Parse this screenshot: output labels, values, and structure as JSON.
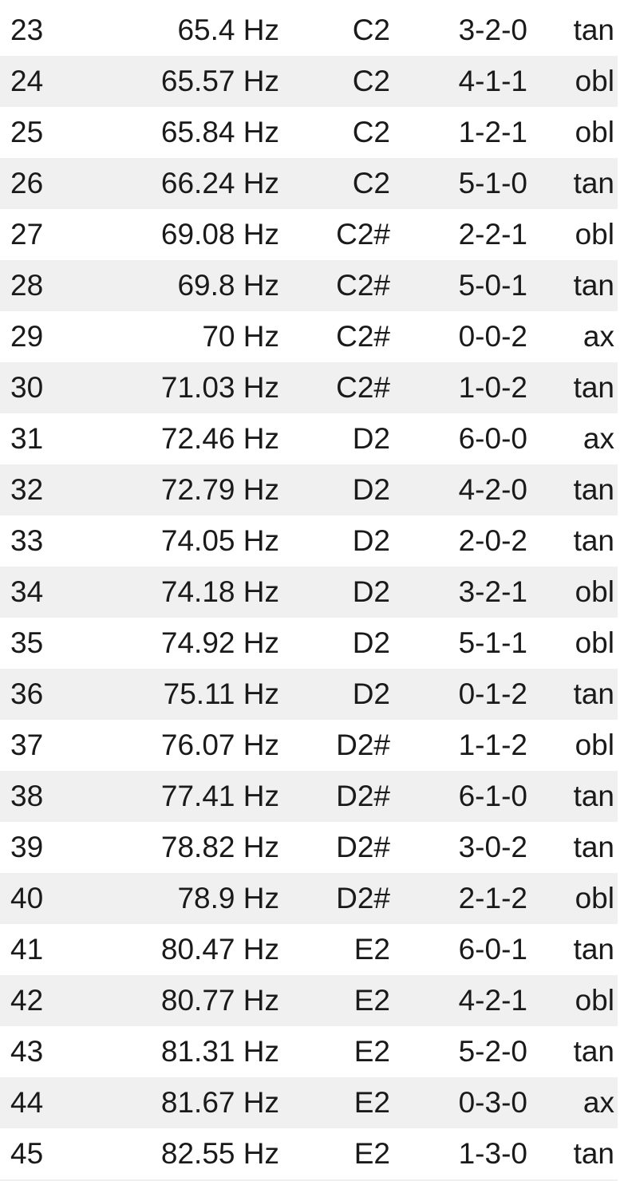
{
  "table": {
    "rows": [
      {
        "index": "23",
        "frequency": "65.4 Hz",
        "note": "C2",
        "mode": "3-2-0",
        "type": "tan"
      },
      {
        "index": "24",
        "frequency": "65.57 Hz",
        "note": "C2",
        "mode": "4-1-1",
        "type": "obl"
      },
      {
        "index": "25",
        "frequency": "65.84 Hz",
        "note": "C2",
        "mode": "1-2-1",
        "type": "obl"
      },
      {
        "index": "26",
        "frequency": "66.24 Hz",
        "note": "C2",
        "mode": "5-1-0",
        "type": "tan"
      },
      {
        "index": "27",
        "frequency": "69.08 Hz",
        "note": "C2#",
        "mode": "2-2-1",
        "type": "obl"
      },
      {
        "index": "28",
        "frequency": "69.8 Hz",
        "note": "C2#",
        "mode": "5-0-1",
        "type": "tan"
      },
      {
        "index": "29",
        "frequency": "70 Hz",
        "note": "C2#",
        "mode": "0-0-2",
        "type": "ax"
      },
      {
        "index": "30",
        "frequency": "71.03 Hz",
        "note": "C2#",
        "mode": "1-0-2",
        "type": "tan"
      },
      {
        "index": "31",
        "frequency": "72.46 Hz",
        "note": "D2",
        "mode": "6-0-0",
        "type": "ax"
      },
      {
        "index": "32",
        "frequency": "72.79 Hz",
        "note": "D2",
        "mode": "4-2-0",
        "type": "tan"
      },
      {
        "index": "33",
        "frequency": "74.05 Hz",
        "note": "D2",
        "mode": "2-0-2",
        "type": "tan"
      },
      {
        "index": "34",
        "frequency": "74.18 Hz",
        "note": "D2",
        "mode": "3-2-1",
        "type": "obl"
      },
      {
        "index": "35",
        "frequency": "74.92 Hz",
        "note": "D2",
        "mode": "5-1-1",
        "type": "obl"
      },
      {
        "index": "36",
        "frequency": "75.11 Hz",
        "note": "D2",
        "mode": "0-1-2",
        "type": "tan"
      },
      {
        "index": "37",
        "frequency": "76.07 Hz",
        "note": "D2#",
        "mode": "1-1-2",
        "type": "obl"
      },
      {
        "index": "38",
        "frequency": "77.41 Hz",
        "note": "D2#",
        "mode": "6-1-0",
        "type": "tan"
      },
      {
        "index": "39",
        "frequency": "78.82 Hz",
        "note": "D2#",
        "mode": "3-0-2",
        "type": "tan"
      },
      {
        "index": "40",
        "frequency": "78.9 Hz",
        "note": "D2#",
        "mode": "2-1-2",
        "type": "obl"
      },
      {
        "index": "41",
        "frequency": "80.47 Hz",
        "note": "E2",
        "mode": "6-0-1",
        "type": "tan"
      },
      {
        "index": "42",
        "frequency": "80.77 Hz",
        "note": "E2",
        "mode": "4-2-1",
        "type": "obl"
      },
      {
        "index": "43",
        "frequency": "81.31 Hz",
        "note": "E2",
        "mode": "5-2-0",
        "type": "tan"
      },
      {
        "index": "44",
        "frequency": "81.67 Hz",
        "note": "E2",
        "mode": "0-3-0",
        "type": "ax"
      },
      {
        "index": "45",
        "frequency": "82.55 Hz",
        "note": "E2",
        "mode": "1-3-0",
        "type": "tan"
      }
    ]
  },
  "colors": {
    "row_alt_background": "#f0f0f0",
    "row_background": "#ffffff",
    "text": "#1a1a1a"
  }
}
